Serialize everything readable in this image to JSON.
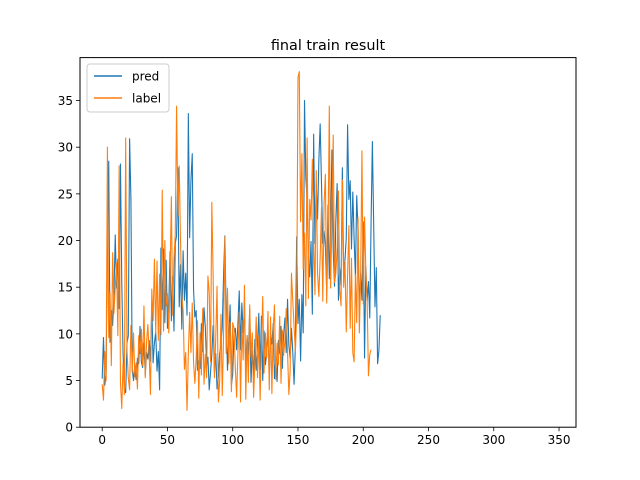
{
  "chart_data": {
    "type": "line",
    "title": "final train result",
    "xlabel": "",
    "ylabel": "",
    "xlim": [
      -17,
      363
    ],
    "ylim": [
      0,
      39.6
    ],
    "xticks": [
      0,
      50,
      100,
      150,
      200,
      250,
      300,
      350
    ],
    "yticks": [
      0,
      5,
      10,
      15,
      20,
      25,
      30,
      35
    ],
    "legend": "top-left",
    "grid": false,
    "series": [
      {
        "name": "pred",
        "color": "#1f77b4",
        "values": [
          5.2,
          9.6,
          4.5,
          5.8,
          19.5,
          28.5,
          9.1,
          12.5,
          10.9,
          14.2,
          20.6,
          14.9,
          18.0,
          12.7,
          28.2,
          15.6,
          7.9,
          4.1,
          3.7,
          9.0,
          9.8,
          30.9,
          24.5,
          6.3,
          5.0,
          6.6,
          5.1,
          7.4,
          6.8,
          10.8,
          7.0,
          6.4,
          9.0,
          5.6,
          8.0,
          7.3,
          9.3,
          7.1,
          13.1,
          6.9,
          9.0,
          10.2,
          6.0,
          8.1,
          4.0,
          19.2,
          12.6,
          19.1,
          11.2,
          17.9,
          10.6,
          12.9,
          18.8,
          11.4,
          16.1,
          10.3,
          19.7,
          20.5,
          27.8,
          12.9,
          17.4,
          10.5,
          18.9,
          13.6,
          16.5,
          12.0,
          33.6,
          20.3,
          26.5,
          29.3,
          14.7,
          11.8,
          12.5,
          6.1,
          7.1,
          6.3,
          11.1,
          8.1,
          12.8,
          10.8,
          6.6,
          7.5,
          4.0,
          5.9,
          7.8,
          10.9,
          5.8,
          7.9,
          4.1,
          5.4,
          7.9,
          8.9,
          10.7,
          16.4,
          20.5,
          11.9,
          6.1,
          9.6,
          13.1,
          4.5,
          5.7,
          10.1,
          10.6,
          8.3,
          11.1,
          14.6,
          8.3,
          13.3,
          10.1,
          12.6,
          6.3,
          9.8,
          7.8,
          12.6,
          4.8,
          8.2,
          5.5,
          9.4,
          6.1,
          8.8,
          12.2,
          6.2,
          11.9,
          5.0,
          10.3,
          6.7,
          7.8,
          10.6,
          5.3,
          9.9,
          8.9,
          11.1,
          5.2,
          7.2,
          4.9,
          9.3,
          7.9,
          10.8,
          6.3,
          9.9,
          11.7,
          8.0,
          13.7,
          8.8,
          7.4,
          10.6,
          8.1,
          4.6,
          8.6,
          20.4,
          11.1,
          13.7,
          7.1,
          14.2,
          10.1,
          35.0,
          26.8,
          24.4,
          18.4,
          16.1,
          19.9,
          12.1,
          31.4,
          19.7,
          26.0,
          22.3,
          28.6,
          32.5,
          26.2,
          19.7,
          21.0,
          19.3,
          14.6,
          23.8,
          15.9,
          21.2,
          29.7,
          18.9,
          15.1,
          22.1,
          26.1,
          13.6,
          17.0,
          15.2,
          27.8,
          16.8,
          17.9,
          20.3,
          32.4,
          24.4,
          26.4,
          19.1,
          25.2,
          20.2,
          16.2,
          24.8,
          21.1,
          12.4,
          16.5,
          13.6,
          22.0,
          7.4,
          17.2,
          13.5,
          15.6,
          11.7,
          21.9,
          30.6,
          21.7,
          12.9,
          17.1,
          6.8,
          8.2,
          12.0
        ]
      },
      {
        "name": "label",
        "color": "#ff7f0e",
        "values": [
          4.6,
          2.9,
          8.1,
          5.0,
          30.0,
          9.6,
          14.4,
          6.6,
          18.7,
          12.2,
          15.0,
          17.6,
          9.8,
          28.0,
          4.8,
          2.0,
          6.9,
          3.5,
          31.0,
          8.2,
          5.3,
          4.0,
          10.9,
          5.9,
          10.1,
          5.4,
          6.9,
          4.1,
          9.8,
          7.9,
          10.5,
          6.6,
          13.0,
          5.3,
          9.1,
          11.0,
          7.7,
          3.5,
          14.8,
          11.4,
          18.0,
          10.0,
          17.8,
          9.3,
          16.4,
          9.9,
          25.4,
          10.3,
          20.0,
          13.0,
          14.3,
          10.1,
          16.0,
          24.7,
          12.0,
          18.1,
          20.7,
          34.4,
          22.6,
          28.0,
          20.0,
          14.0,
          12.5,
          6.2,
          8.0,
          1.8,
          7.9,
          12.3,
          8.0,
          13.3,
          6.9,
          4.7,
          7.4,
          11.4,
          3.1,
          10.1,
          5.6,
          12.7,
          4.6,
          7.8,
          5.3,
          16.2,
          14.4,
          7.0,
          24.1,
          16.2,
          5.3,
          9.6,
          15.1,
          2.7,
          4.9,
          12.1,
          3.4,
          9.9,
          20.4,
          7.9,
          14.9,
          6.8,
          11.2,
          3.8,
          11.2,
          10.6,
          6.3,
          3.2,
          8.0,
          12.3,
          2.7,
          11.4,
          7.2,
          15.2,
          3.0,
          9.7,
          4.8,
          13.1,
          7.5,
          10.1,
          3.2,
          7.1,
          11.8,
          5.3,
          9.8,
          2.9,
          9.1,
          14.0,
          5.8,
          10.1,
          7.4,
          12.4,
          4.0,
          11.8,
          3.6,
          10.5,
          13.1,
          5.1,
          9.0,
          6.7,
          11.9,
          4.7,
          10.4,
          7.7,
          9.3,
          12.7,
          8.1,
          3.5,
          6.0,
          16.5,
          13.6,
          10.8,
          8.1,
          12.0,
          37.5,
          38.1,
          22.0,
          29.3,
          16.9,
          20.8,
          13.0,
          31.0,
          13.8,
          24.4,
          22.2,
          28.7,
          20.0,
          14.2,
          27.5,
          16.5,
          14.0,
          18.2,
          23.5,
          13.5,
          24.0,
          27.1,
          13.3,
          20.0,
          34.4,
          14.9,
          22.1,
          31.3,
          15.5,
          16.5,
          19.2,
          25.3,
          14.7,
          13.0,
          26.5,
          15.0,
          17.8,
          10.2,
          16.3,
          21.6,
          10.6,
          18.1,
          8.0,
          7.0,
          16.4,
          11.2,
          22.5,
          10.1,
          16.0,
          29.6,
          13.2,
          22.5,
          16.7,
          13.4,
          5.5,
          7.8,
          8.3
        ]
      }
    ]
  }
}
